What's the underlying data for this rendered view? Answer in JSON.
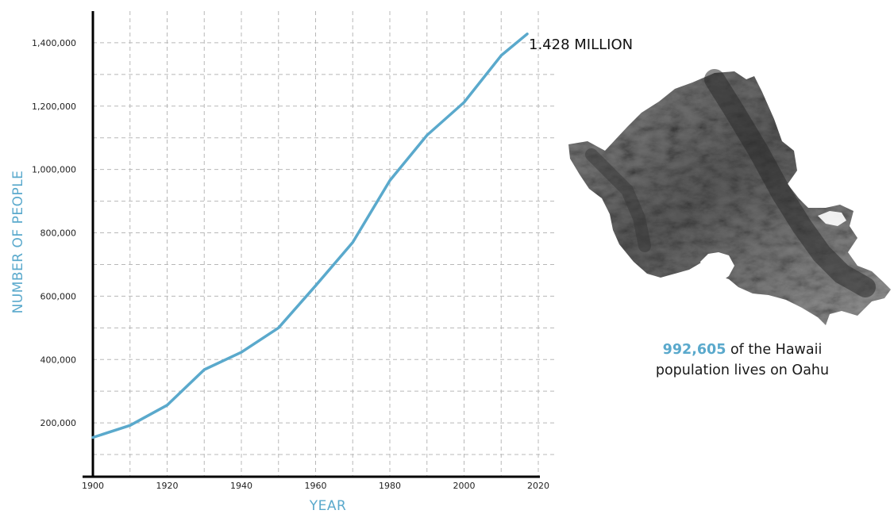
{
  "chart_data": {
    "type": "line",
    "x": [
      1900,
      1910,
      1920,
      1930,
      1940,
      1950,
      1960,
      1970,
      1980,
      1990,
      2000,
      2010,
      2017
    ],
    "series": [
      {
        "values": [
          154000,
          192000,
          256000,
          368000,
          423000,
          500000,
          633000,
          770000,
          965000,
          1108000,
          1212000,
          1360000,
          1428000
        ]
      }
    ],
    "xlabel": "YEAR",
    "ylabel": "NUMBER OF PEOPLE",
    "xlim": [
      1900,
      2020
    ],
    "ylim": [
      30000,
      1500000
    ],
    "x_ticks": [
      "1900",
      "1920",
      "1940",
      "1960",
      "1980",
      "2000",
      "2020"
    ],
    "y_ticks": [
      "200,000",
      "400,000",
      "600,000",
      "800,000",
      "1,000,000",
      "1,200,000",
      "1,400,000"
    ],
    "grid": true,
    "line_color": "#5aa9cc",
    "annotation": "1.428 MILLION"
  },
  "caption": {
    "highlight": "992,605",
    "line1_rest": " of the Hawaii",
    "line2": "population lives on Oahu"
  },
  "colors": {
    "accent": "#5aa9cc"
  }
}
